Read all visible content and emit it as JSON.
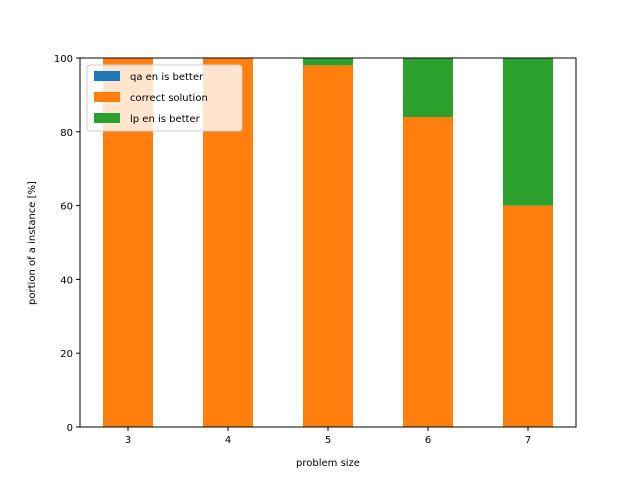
{
  "chart_data": {
    "type": "bar",
    "stacked": true,
    "categories": [
      "3",
      "4",
      "5",
      "6",
      "7"
    ],
    "series": [
      {
        "name": "qa en is better",
        "color": "#1f77b4",
        "values": [
          0,
          0,
          0,
          0,
          0
        ]
      },
      {
        "name": "correct solution",
        "color": "#ff7f0e",
        "values": [
          100,
          100,
          98,
          84,
          60
        ]
      },
      {
        "name": "lp en is better",
        "color": "#2ca02c",
        "values": [
          0,
          0,
          2,
          16,
          40
        ]
      }
    ],
    "xlabel": "problem size",
    "ylabel": "portion of a instance [%]",
    "ylim": [
      0,
      100
    ],
    "yticks": [
      0,
      20,
      40,
      60,
      80,
      100
    ],
    "grid": false,
    "legend_position": "top-left"
  }
}
